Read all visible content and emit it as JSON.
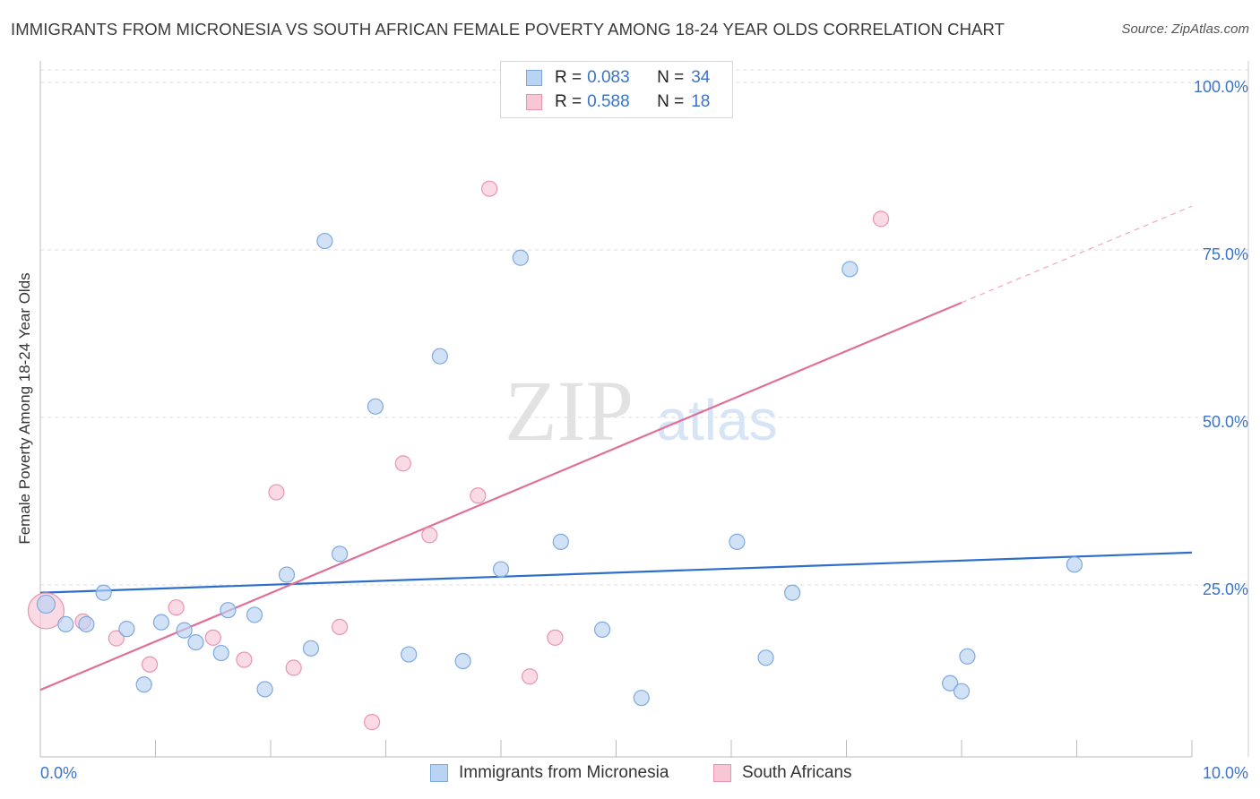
{
  "title": "IMMIGRANTS FROM MICRONESIA VS SOUTH AFRICAN FEMALE POVERTY AMONG 18-24 YEAR OLDS CORRELATION CHART",
  "source": "Source: ZipAtlas.com",
  "watermark": {
    "zip": "ZIP",
    "atlas": "atlas"
  },
  "legend": {
    "series1": {
      "r_label": "R =",
      "r_value": "0.083",
      "n_label": "N =",
      "n_value": "34"
    },
    "series2": {
      "r_label": "R =",
      "r_value": "0.588",
      "n_label": "N =",
      "n_value": "18"
    }
  },
  "colors": {
    "blue_fill": "#b9d3f2",
    "blue_stroke": "#7fa9de",
    "blue_line": "#2f6fcc",
    "pink_fill": "#f8c6d5",
    "pink_stroke": "#ea94b0",
    "pink_line": "#e0709a",
    "axis_text": "#3a73c8",
    "grid": "#dcdcdc"
  },
  "chart_data": {
    "type": "scatter",
    "title": "IMMIGRANTS FROM MICRONESIA VS SOUTH AFRICAN FEMALE POVERTY AMONG 18-24 YEAR OLDS CORRELATION CHART",
    "xlabel": "",
    "ylabel": "Female Poverty Among 18-24 Year Olds",
    "xlim": [
      0,
      10
    ],
    "ylim": [
      0,
      100
    ],
    "x_tick_labels": [
      "0.0%",
      "10.0%"
    ],
    "y_tick_labels": [
      "100.0%",
      "75.0%",
      "50.0%",
      "25.0%"
    ],
    "y_ticks": [
      100,
      75,
      50,
      25
    ],
    "series": [
      {
        "name": "Immigrants from Micronesia",
        "color": "blue",
        "r": 0.083,
        "n": 34,
        "trend": {
          "x0": 0,
          "y0": 24.5,
          "x1": 10,
          "y1": 30.5
        },
        "points": [
          {
            "x": 0.05,
            "y": 22.8,
            "big": 1
          },
          {
            "x": 0.22,
            "y": 19.8
          },
          {
            "x": 0.4,
            "y": 19.8
          },
          {
            "x": 0.55,
            "y": 24.5
          },
          {
            "x": 0.75,
            "y": 19.1
          },
          {
            "x": 0.9,
            "y": 10.8
          },
          {
            "x": 1.05,
            "y": 20.1
          },
          {
            "x": 1.25,
            "y": 18.9
          },
          {
            "x": 1.35,
            "y": 17.1
          },
          {
            "x": 1.57,
            "y": 15.5
          },
          {
            "x": 1.63,
            "y": 21.9
          },
          {
            "x": 1.86,
            "y": 21.2
          },
          {
            "x": 1.95,
            "y": 10.1
          },
          {
            "x": 2.14,
            "y": 27.2
          },
          {
            "x": 2.35,
            "y": 16.2
          },
          {
            "x": 2.47,
            "y": 77.0
          },
          {
            "x": 2.6,
            "y": 30.3
          },
          {
            "x": 2.91,
            "y": 52.3
          },
          {
            "x": 3.2,
            "y": 15.3
          },
          {
            "x": 3.47,
            "y": 59.8
          },
          {
            "x": 3.67,
            "y": 14.3
          },
          {
            "x": 4.0,
            "y": 28.0
          },
          {
            "x": 4.17,
            "y": 74.5
          },
          {
            "x": 4.52,
            "y": 32.1
          },
          {
            "x": 4.88,
            "y": 19.0
          },
          {
            "x": 5.22,
            "y": 8.8
          },
          {
            "x": 6.05,
            "y": 32.1
          },
          {
            "x": 6.3,
            "y": 14.8
          },
          {
            "x": 6.53,
            "y": 24.5
          },
          {
            "x": 7.03,
            "y": 72.8
          },
          {
            "x": 7.9,
            "y": 11.0
          },
          {
            "x": 8.0,
            "y": 9.8
          },
          {
            "x": 8.05,
            "y": 15.0
          },
          {
            "x": 8.98,
            "y": 28.7
          }
        ]
      },
      {
        "name": "South Africans",
        "color": "pink",
        "r": 0.588,
        "n": 18,
        "trend": {
          "x0": 0,
          "y0": 10.0,
          "x1": 8.0,
          "y1": 67.8
        },
        "trend_dashed": {
          "x0": 8.0,
          "y0": 67.8,
          "x1": 10,
          "y1": 82.2
        },
        "points": [
          {
            "x": 0.05,
            "y": 21.8,
            "big": 1
          },
          {
            "x": 0.37,
            "y": 20.2
          },
          {
            "x": 0.66,
            "y": 17.7
          },
          {
            "x": 0.95,
            "y": 13.8
          },
          {
            "x": 1.18,
            "y": 22.3
          },
          {
            "x": 1.5,
            "y": 17.8
          },
          {
            "x": 1.77,
            "y": 14.5
          },
          {
            "x": 2.05,
            "y": 39.5
          },
          {
            "x": 2.2,
            "y": 13.3
          },
          {
            "x": 2.6,
            "y": 19.4
          },
          {
            "x": 2.88,
            "y": 5.2
          },
          {
            "x": 3.15,
            "y": 43.8
          },
          {
            "x": 3.38,
            "y": 33.1
          },
          {
            "x": 3.8,
            "y": 39.0
          },
          {
            "x": 3.9,
            "y": 84.8
          },
          {
            "x": 4.25,
            "y": 12.0
          },
          {
            "x": 4.47,
            "y": 17.8
          },
          {
            "x": 7.3,
            "y": 80.3
          }
        ]
      }
    ]
  },
  "bottom_legend": {
    "item1": "Immigrants from Micronesia",
    "item2": "South Africans"
  }
}
